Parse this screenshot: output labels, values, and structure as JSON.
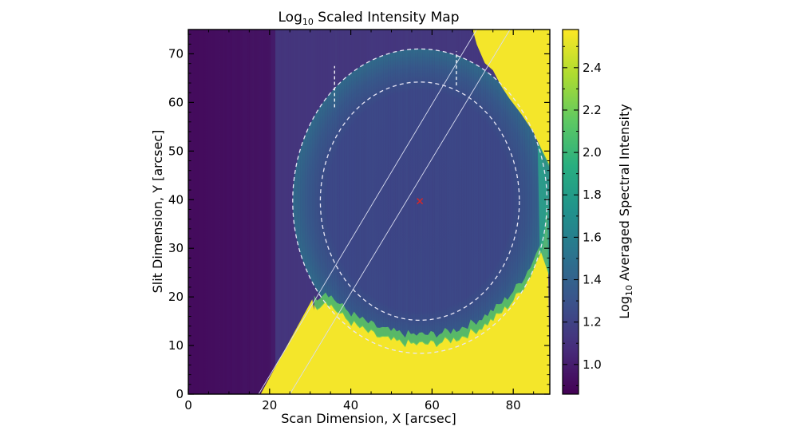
{
  "chart_data": {
    "type": "heatmap",
    "title": {
      "prefix": "Log",
      "sub": "10",
      "rest": " Scaled Intensity Map"
    },
    "xlabel": "Scan Dimension, X [arcsec]",
    "ylabel": "Slit Dimension, Y [arcsec]",
    "xlim": [
      0,
      89
    ],
    "ylim": [
      0,
      75
    ],
    "xticks": [
      0,
      20,
      40,
      60,
      80
    ],
    "yticks": [
      0,
      10,
      20,
      30,
      40,
      50,
      60,
      70
    ],
    "colorbar": {
      "label": {
        "prefix": "Log",
        "sub": "10",
        "rest": " Averaged Spectral Intensity"
      },
      "range": [
        0.86,
        2.58
      ],
      "ticks": [
        1.0,
        1.2,
        1.4,
        1.6,
        1.8,
        2.0,
        2.2,
        2.4
      ],
      "tick_labels": [
        "1.0",
        "1.2",
        "1.4",
        "1.6",
        "1.8",
        "2.0",
        "2.2",
        "2.4"
      ],
      "colormap": "viridis"
    },
    "overlays": {
      "center": {
        "x": 57,
        "y": 39.7,
        "marker": "x",
        "color": "#d62728"
      },
      "inner_circle": {
        "cx": 57,
        "cy": 39.7,
        "r": 24.5,
        "style": "dashed"
      },
      "outer_circle": {
        "cx": 57,
        "cy": 39.7,
        "r": 31.3,
        "style": "dashed"
      },
      "diagonal_lines": [
        {
          "x1": 17.3,
          "y1": 0,
          "x2": 71.0,
          "y2": 75
        },
        {
          "x1": 25.0,
          "y1": 0,
          "x2": 79.2,
          "y2": 75
        }
      ],
      "vertical_dashes": [
        {
          "x": 36,
          "y1": 59,
          "y2": 67.5
        },
        {
          "x": 66,
          "y1": 63.5,
          "y2": 70.5
        }
      ]
    },
    "regions": {
      "background_left": 0.96,
      "background_mid": 1.12,
      "disk_interior": 1.2,
      "disk_edge": 1.5,
      "bright_limb": 2.55
    }
  }
}
